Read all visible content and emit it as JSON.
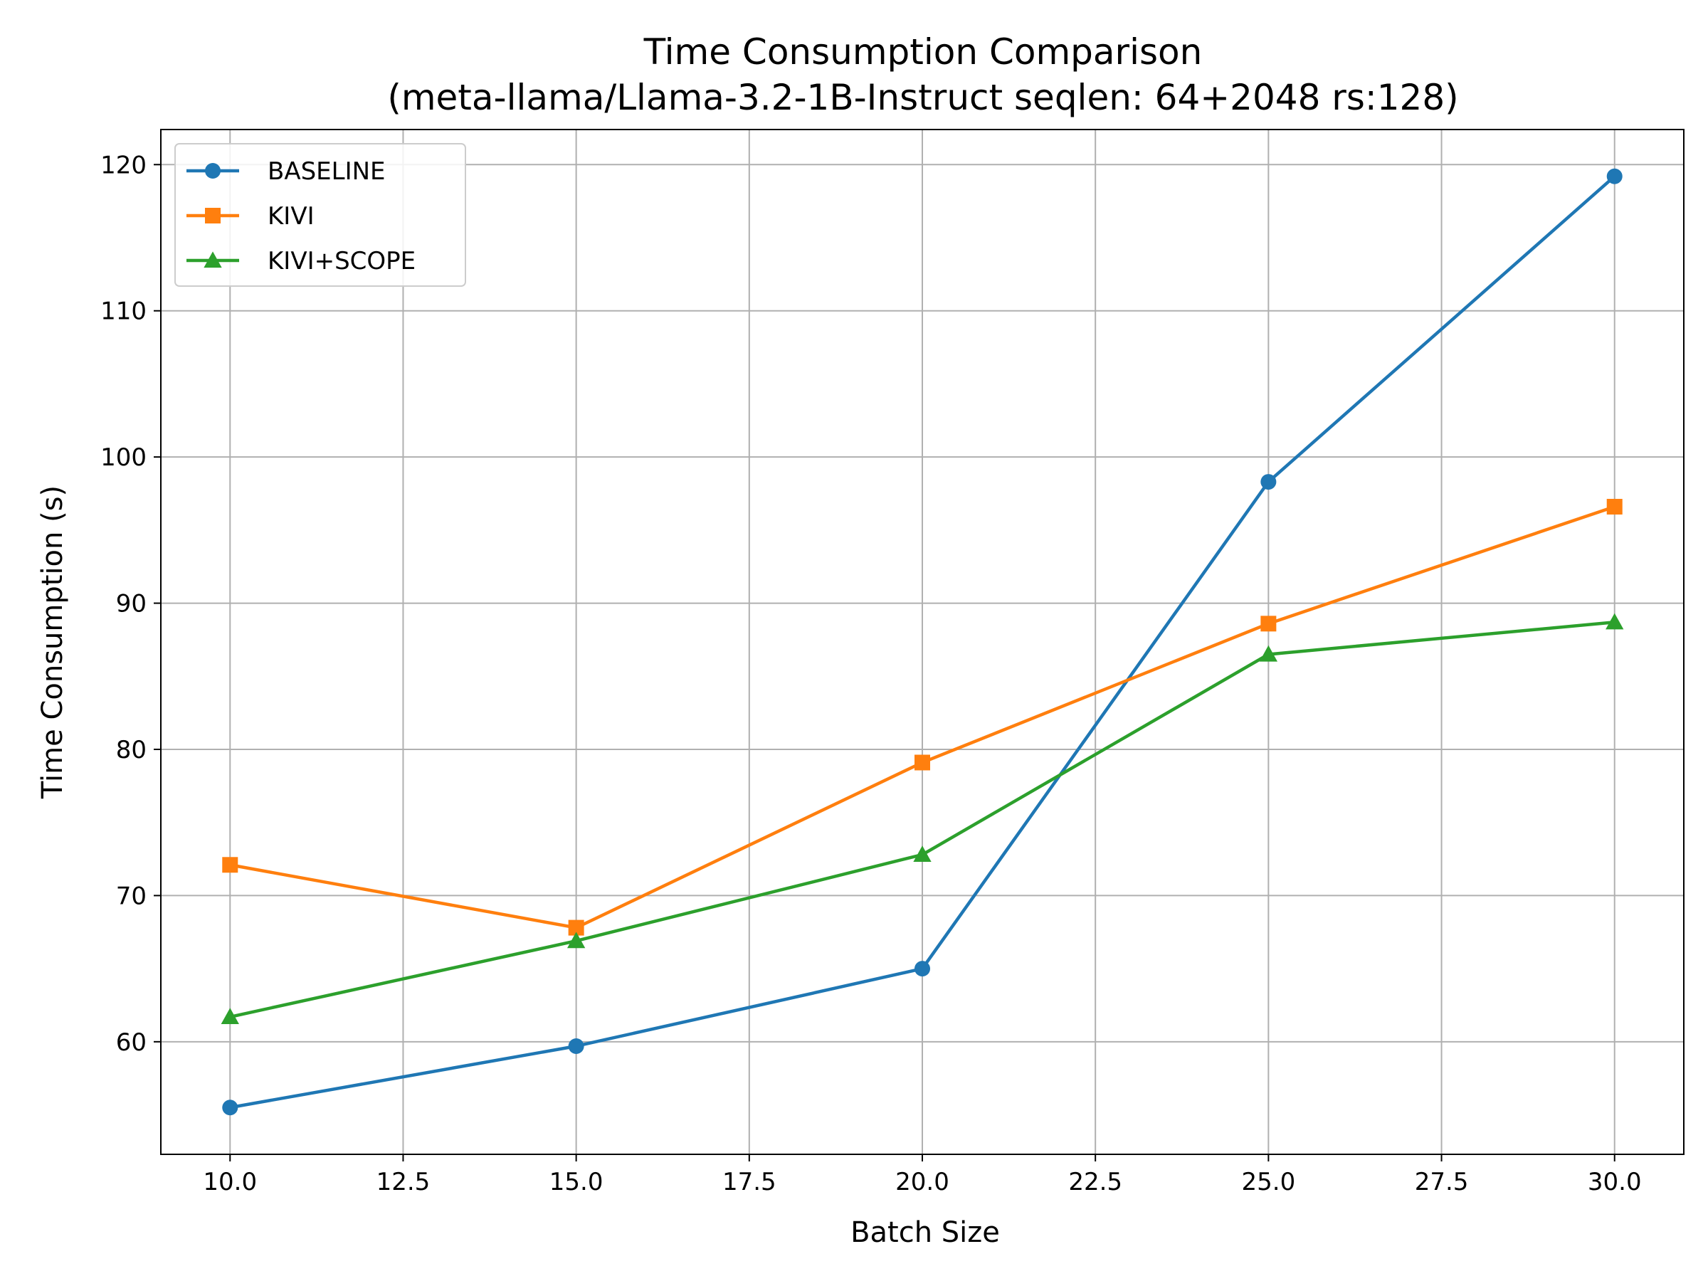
{
  "chart_data": {
    "type": "line",
    "title": "Time Consumption Comparison",
    "subtitle": "(meta-llama/Llama-3.2-1B-Instruct seqlen: 64+2048 rs:128)",
    "xlabel": "Batch Size",
    "ylabel": "Time Consumption (s)",
    "x": [
      10,
      15,
      20,
      25,
      30
    ],
    "xlim": [
      9,
      31
    ],
    "ylim": [
      52.3,
      122.4
    ],
    "xticks": [
      "10.0",
      "12.5",
      "15.0",
      "17.5",
      "20.0",
      "22.5",
      "25.0",
      "27.5",
      "30.0"
    ],
    "yticks": [
      "60",
      "70",
      "80",
      "90",
      "100",
      "110",
      "120"
    ],
    "grid": true,
    "legend_position": "upper-left",
    "series": [
      {
        "name": "BASELINE",
        "color": "#1f77b4",
        "marker": "circle",
        "values": [
          55.5,
          59.7,
          65.0,
          98.3,
          119.2
        ]
      },
      {
        "name": "KIVI",
        "color": "#ff7f0e",
        "marker": "square",
        "values": [
          72.1,
          67.8,
          79.1,
          88.6,
          96.6
        ]
      },
      {
        "name": "KIVI+SCOPE",
        "color": "#2ca02c",
        "marker": "triangle",
        "values": [
          61.7,
          66.9,
          72.8,
          86.5,
          88.7
        ]
      }
    ]
  }
}
